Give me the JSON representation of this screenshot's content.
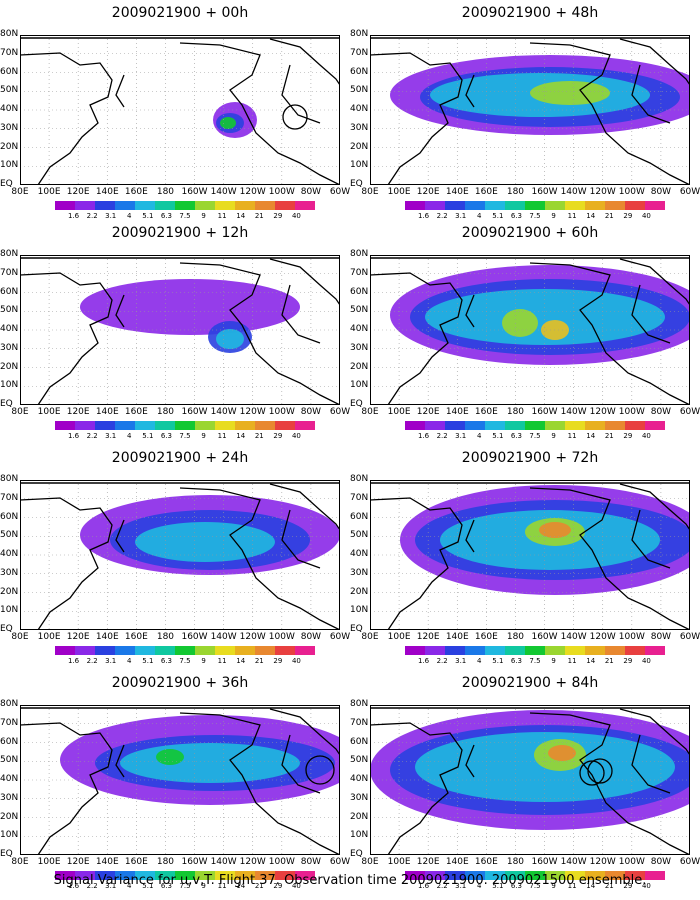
{
  "panels": [
    {
      "title": "2009021900 + 00h",
      "col": 0,
      "row": 0,
      "blobs": [
        [
          215,
          85,
          22,
          18,
          "#8a28e8"
        ],
        [
          210,
          88,
          14,
          10,
          "#2a40e0"
        ],
        [
          208,
          88,
          8,
          6,
          "#12c832"
        ]
      ],
      "circles": [
        [
          275,
          82,
          12
        ]
      ]
    },
    {
      "title": "2009021900 + 48h",
      "col": 1,
      "row": 0,
      "blobs": [
        [
          180,
          60,
          160,
          40,
          "#8a28e8"
        ],
        [
          180,
          62,
          130,
          30,
          "#2a40e0"
        ],
        [
          170,
          60,
          110,
          22,
          "#20b8e0"
        ],
        [
          200,
          58,
          40,
          12,
          "#9ad630"
        ]
      ],
      "circles": []
    },
    {
      "title": "2009021900 + 12h",
      "col": 0,
      "row": 1,
      "blobs": [
        [
          170,
          52,
          110,
          28,
          "#8a28e8"
        ],
        [
          210,
          82,
          22,
          16,
          "#2a40e0"
        ],
        [
          210,
          84,
          14,
          10,
          "#20b8e0"
        ]
      ],
      "circles": []
    },
    {
      "title": "2009021900 + 60h",
      "col": 1,
      "row": 1,
      "blobs": [
        [
          180,
          60,
          160,
          50,
          "#8a28e8"
        ],
        [
          180,
          62,
          140,
          38,
          "#2a40e0"
        ],
        [
          175,
          62,
          120,
          28,
          "#20b8e0"
        ],
        [
          150,
          68,
          18,
          14,
          "#9ad630"
        ],
        [
          185,
          75,
          14,
          10,
          "#e8c020"
        ]
      ],
      "circles": []
    },
    {
      "title": "2009021900 + 24h",
      "col": 0,
      "row": 2,
      "blobs": [
        [
          190,
          55,
          130,
          40,
          "#8a28e8"
        ],
        [
          190,
          60,
          100,
          30,
          "#2a40e0"
        ],
        [
          185,
          62,
          70,
          20,
          "#20b8e0"
        ]
      ],
      "circles": []
    },
    {
      "title": "2009021900 + 72h",
      "col": 1,
      "row": 2,
      "blobs": [
        [
          185,
          60,
          155,
          55,
          "#8a28e8"
        ],
        [
          185,
          60,
          140,
          40,
          "#2a40e0"
        ],
        [
          180,
          60,
          110,
          30,
          "#20b8e0"
        ],
        [
          185,
          52,
          30,
          14,
          "#9ad630"
        ],
        [
          185,
          50,
          16,
          8,
          "#e88830"
        ]
      ],
      "circles": []
    },
    {
      "title": "2009021900 + 36h",
      "col": 0,
      "row": 3,
      "blobs": [
        [
          190,
          55,
          150,
          45,
          "#8a28e8"
        ],
        [
          195,
          58,
          120,
          28,
          "#2a40e0"
        ],
        [
          190,
          58,
          90,
          20,
          "#20b8e0"
        ],
        [
          150,
          52,
          14,
          8,
          "#12c832"
        ]
      ],
      "circles": [
        [
          300,
          65,
          14
        ]
      ]
    },
    {
      "title": "2009021900 + 84h",
      "col": 1,
      "row": 3,
      "blobs": [
        [
          175,
          65,
          175,
          60,
          "#8a28e8"
        ],
        [
          175,
          65,
          155,
          45,
          "#2a40e0"
        ],
        [
          175,
          62,
          130,
          35,
          "#20b8e0"
        ],
        [
          190,
          50,
          26,
          16,
          "#9ad630"
        ],
        [
          192,
          48,
          14,
          8,
          "#e88830"
        ]
      ],
      "circles": [
        [
          222,
          68,
          12
        ],
        [
          230,
          66,
          12
        ]
      ]
    }
  ],
  "lat_labels": [
    "80N",
    "70N",
    "60N",
    "50N",
    "40N",
    "30N",
    "20N",
    "10N",
    "EQ"
  ],
  "lon_labels": [
    "80E",
    "100E",
    "120E",
    "140E",
    "160E",
    "180",
    "160W",
    "140W",
    "120W",
    "100W",
    "80W",
    "60W"
  ],
  "colorbar": {
    "colors": [
      "#a000c8",
      "#8a28e8",
      "#2a40e0",
      "#1a78e8",
      "#20b8e0",
      "#10c8a0",
      "#12c832",
      "#9ad630",
      "#e8dc20",
      "#e8b020",
      "#e88830",
      "#e84040",
      "#e82090"
    ],
    "labels": [
      "1.6",
      "2.2",
      "3.1",
      "4",
      "5.1",
      "6.3",
      "7.5",
      "9",
      "11",
      "14",
      "21",
      "29",
      "40"
    ]
  },
  "footer": "Signal Variance for u,v,T. Flight 37. Observation time 2009021900. 2009021500 ensemble."
}
